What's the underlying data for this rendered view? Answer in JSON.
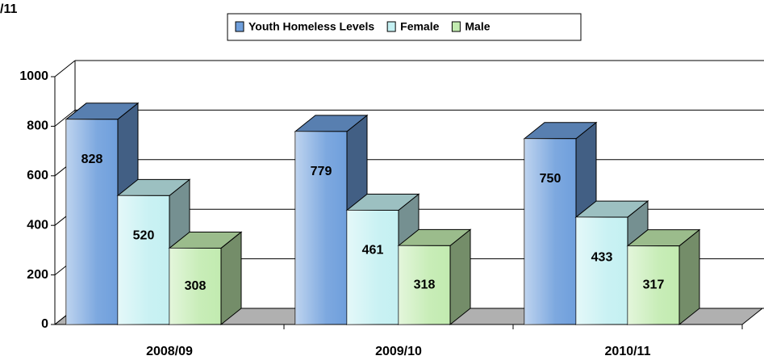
{
  "chart_data": {
    "type": "bar3d",
    "title": "/11",
    "categories": [
      "2008/09",
      "2009/10",
      "2010/11"
    ],
    "series": [
      {
        "name": "Youth Homeless Levels",
        "color": "#6f9fdc",
        "values": [
          828,
          779,
          750
        ]
      },
      {
        "name": "Female",
        "color": "#c4f0f2",
        "values": [
          520,
          461,
          433
        ]
      },
      {
        "name": "Male",
        "color": "#c2ebb0",
        "values": [
          308,
          318,
          317
        ]
      }
    ],
    "ylim": [
      0,
      1000
    ],
    "yticks": [
      0,
      200,
      400,
      600,
      800,
      1000
    ],
    "grid": true,
    "legend": "top"
  }
}
